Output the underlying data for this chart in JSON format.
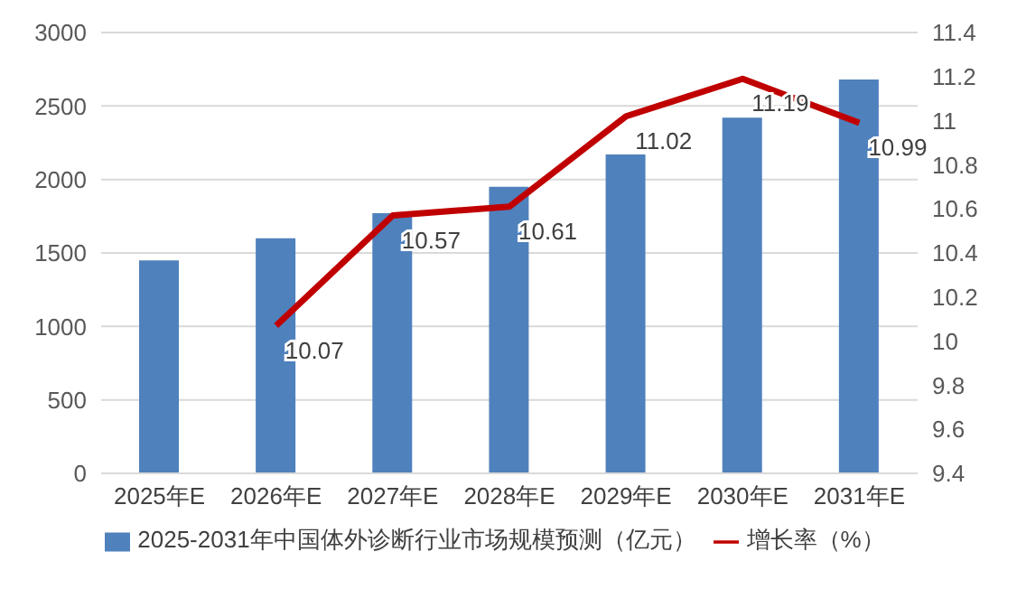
{
  "chart_data": {
    "type": "bar",
    "categories": [
      "2025年E",
      "2026年E",
      "2027年E",
      "2028年E",
      "2029年E",
      "2030年E",
      "2031年E"
    ],
    "series": [
      {
        "name": "2025-2031年中国体外诊断行业市场规模预测（亿元）",
        "color": "#4f81bd",
        "values": [
          1450,
          1600,
          1770,
          1950,
          2170,
          2420,
          2680
        ]
      },
      {
        "name": "增长率（%）",
        "type": "line",
        "axis": "y2",
        "color": "#c00000",
        "values": [
          null,
          10.07,
          10.57,
          10.61,
          11.02,
          11.19,
          10.99
        ],
        "value_labels": [
          null,
          "10.07",
          "10.57",
          "10.61",
          "11.02",
          "11.19",
          "10.99"
        ]
      }
    ],
    "ylim": [
      0,
      3000
    ],
    "yticks": [
      0,
      500,
      1000,
      1500,
      2000,
      2500,
      3000
    ],
    "y2lim": [
      9.4,
      11.4
    ],
    "y2ticks": [
      9.4,
      9.6,
      9.8,
      10,
      10.2,
      10.4,
      10.6,
      10.8,
      11,
      11.2,
      11.4
    ],
    "grid": "y",
    "legend": "bottom",
    "marker": "none"
  }
}
